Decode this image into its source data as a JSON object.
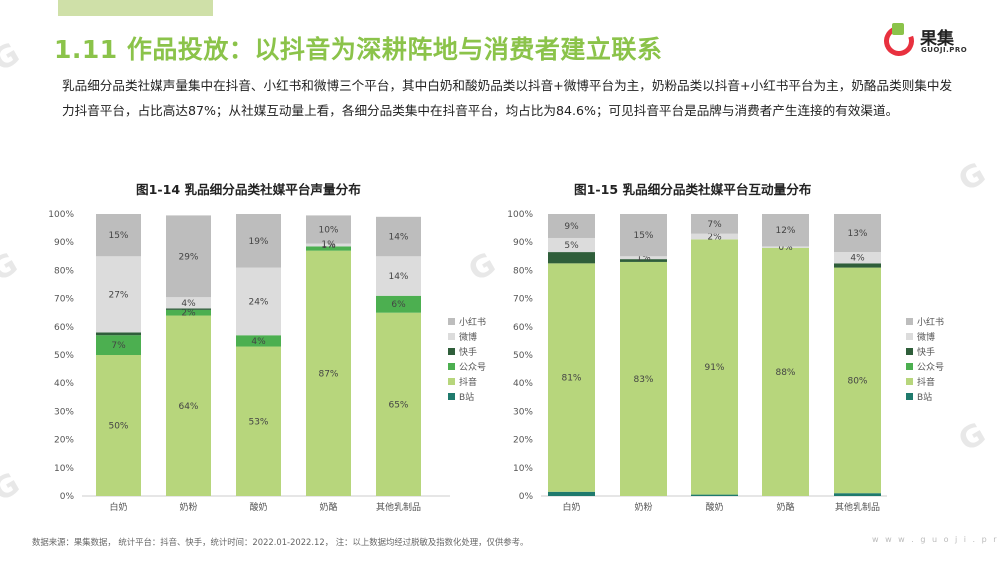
{
  "header": {
    "title": "1.11 作品投放：以抖音为深耕阵地与消费者建立联系"
  },
  "logo": {
    "cn": "果集",
    "en": "GUOJI.PRO"
  },
  "paragraph": "乳品细分品类社媒声量集中在抖音、小红书和微博三个平台，其中白奶和酸奶品类以抖音+微博平台为主，奶粉品类以抖音+小红书平台为主，奶酪品类则集中发力抖音平台，占比高达87%；从社媒互动量上看，各细分品类集中在抖音平台，均占比为84.6%；可见抖音平台是品牌与消费者产生连接的有效渠道。",
  "footer": {
    "source": "数据来源：果集数据， 统计平台：抖音、快手，统计时间：2022.01-2022.12，  注：以上数据均经过脱敏及指数化处理，仅供参考。",
    "site": "w w w . g u o j i . p r o"
  },
  "colors": {
    "小红书": "#bdbdbd",
    "微博": "#dcdcdc",
    "快手": "#2f5e3a",
    "公众号": "#4caf50",
    "抖音": "#b7d67c",
    "B站": "#1f7a6d"
  },
  "chart_data": [
    {
      "type": "bar",
      "stacked": true,
      "title": "图1-14 乳品细分品类社媒平台声量分布",
      "categories": [
        "白奶",
        "奶粉",
        "酸奶",
        "奶酪",
        "其他乳制品"
      ],
      "ylim": [
        0,
        100
      ],
      "yticks": [
        "0%",
        "10%",
        "20%",
        "30%",
        "40%",
        "50%",
        "60%",
        "70%",
        "80%",
        "90%",
        "100%"
      ],
      "legend": [
        "小红书",
        "微博",
        "快手",
        "公众号",
        "抖音",
        "B站"
      ],
      "legend_position": "right",
      "series": [
        {
          "name": "B站",
          "values": [
            0,
            0,
            0,
            0,
            0
          ],
          "labels": [
            "",
            "",
            "",
            "",
            ""
          ]
        },
        {
          "name": "抖音",
          "values": [
            50,
            64,
            53,
            87,
            65
          ],
          "labels": [
            "50%",
            "64%",
            "53%",
            "87%",
            "65%"
          ]
        },
        {
          "name": "公众号",
          "values": [
            7,
            2,
            4,
            1.5,
            6
          ],
          "labels": [
            "7%",
            "2%",
            "4%",
            "",
            "6%"
          ]
        },
        {
          "name": "快手",
          "values": [
            1,
            0.5,
            0,
            0,
            0
          ],
          "labels": [
            "",
            "",
            "",
            "",
            ""
          ]
        },
        {
          "name": "微博",
          "values": [
            27,
            4,
            24,
            1,
            14
          ],
          "labels": [
            "27%",
            "4%",
            "24%",
            "1%",
            "14%"
          ]
        },
        {
          "name": "小红书",
          "values": [
            15,
            29,
            19,
            10,
            14
          ],
          "labels": [
            "15%",
            "29%",
            "19%",
            "10%",
            "14%"
          ]
        }
      ],
      "extra_labels": [
        {
          "category": "奶酪",
          "text": "1%",
          "at": 89.3
        }
      ]
    },
    {
      "type": "bar",
      "stacked": true,
      "title": "图1-15 乳品细分品类社媒平台互动量分布",
      "categories": [
        "白奶",
        "奶粉",
        "酸奶",
        "奶酪",
        "其他乳制品"
      ],
      "ylim": [
        0,
        100
      ],
      "yticks": [
        "0%",
        "10%",
        "20%",
        "30%",
        "40%",
        "50%",
        "60%",
        "70%",
        "80%",
        "90%",
        "100%"
      ],
      "legend": [
        "小红书",
        "微博",
        "快手",
        "公众号",
        "抖音",
        "B站"
      ],
      "legend_position": "right",
      "series": [
        {
          "name": "B站",
          "values": [
            1.5,
            0,
            0.5,
            0,
            1
          ],
          "labels": [
            "",
            "",
            "",
            "",
            ""
          ]
        },
        {
          "name": "抖音",
          "values": [
            81,
            83,
            90.5,
            88,
            80
          ],
          "labels": [
            "81%",
            "83%",
            "91%",
            "88%",
            "80%"
          ]
        },
        {
          "name": "公众号",
          "values": [
            0,
            0,
            0,
            0,
            0
          ],
          "labels": [
            "",
            "",
            "",
            "",
            ""
          ]
        },
        {
          "name": "快手",
          "values": [
            4,
            1,
            0,
            0,
            1.5
          ],
          "labels": [
            "",
            "",
            "",
            "",
            ""
          ]
        },
        {
          "name": "微博",
          "values": [
            5,
            1,
            2,
            0.5,
            4
          ],
          "labels": [
            "5%",
            "1%",
            "2%",
            "0%",
            "4%"
          ]
        },
        {
          "name": "小红书",
          "values": [
            8.5,
            15,
            7,
            11.5,
            13.5
          ],
          "labels": [
            "9%",
            "15%",
            "7%",
            "12%",
            "13%"
          ]
        }
      ]
    }
  ]
}
